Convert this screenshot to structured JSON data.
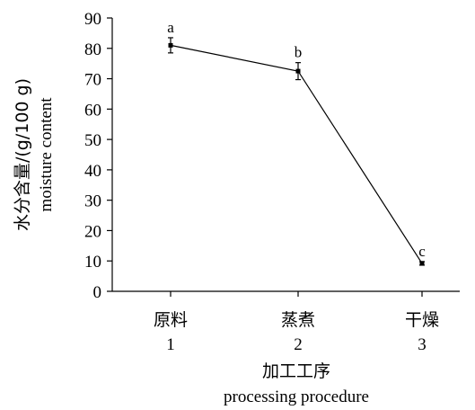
{
  "chart_data": {
    "type": "line",
    "categories": [
      "原料",
      "蒸煮",
      "干燥"
    ],
    "category_numbers": [
      "1",
      "2",
      "3"
    ],
    "values": [
      81,
      72.5,
      9.2
    ],
    "errors": [
      2.5,
      2.8,
      0.6
    ],
    "significance_labels": [
      "a",
      "b",
      "c"
    ],
    "xlabel_cn": "加工工序",
    "xlabel_en": "processing procedure",
    "ylabel_cn": "水分含量/(g/100 g)",
    "ylabel_en": "moisture content",
    "ylim": [
      0,
      90
    ],
    "yticks": [
      0,
      10,
      20,
      30,
      40,
      50,
      60,
      70,
      80,
      90
    ],
    "grid": false,
    "legend": "none"
  }
}
